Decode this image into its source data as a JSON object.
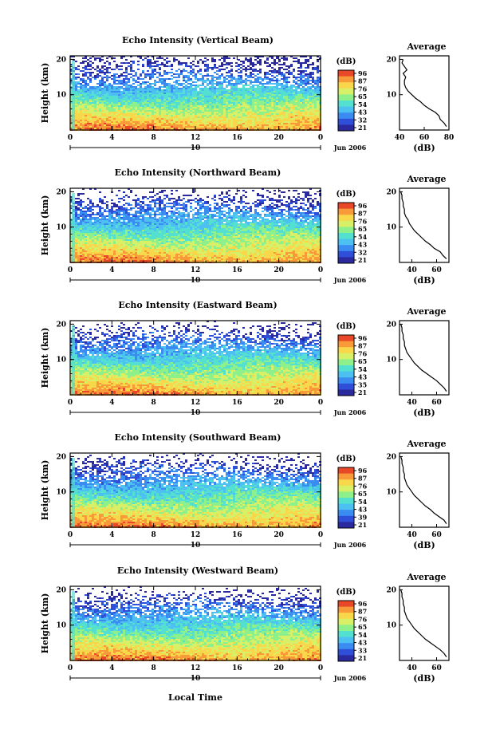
{
  "x_label": "Local Time",
  "colorbar": {
    "unit": "(dB)",
    "colors": [
      "#2a2a9e",
      "#2f4fd8",
      "#3b8cf0",
      "#4cc0f0",
      "#54e0d0",
      "#8ef08a",
      "#d8f068",
      "#f8d84a",
      "#f89a3a",
      "#e84828"
    ]
  },
  "avg_label": "(dB)",
  "avg_title": "Average",
  "date_label": "Jun 2006",
  "day_label": "10",
  "chart_data": [
    {
      "type": "heatmap",
      "title": "Echo Intensity (Vertical Beam)",
      "ylabel": "Height (km)",
      "x_ticks": [
        "0",
        "4",
        "8",
        "12",
        "16",
        "20",
        "0"
      ],
      "y_ticks": [
        "20",
        "10"
      ],
      "ylim": [
        0,
        21
      ],
      "colorbar_ticks": [
        "96",
        "87",
        "76",
        "65",
        "54",
        "43",
        "32",
        "21"
      ],
      "avg": {
        "xlim": [
          40,
          80
        ],
        "x_ticks": [
          "40",
          "60",
          "80"
        ],
        "y_ticks": [
          "20",
          "10"
        ],
        "profile": [
          [
            78,
            1
          ],
          [
            76,
            2
          ],
          [
            73,
            3
          ],
          [
            72,
            4
          ],
          [
            69,
            5
          ],
          [
            64,
            6
          ],
          [
            60,
            7
          ],
          [
            57,
            8
          ],
          [
            53,
            9
          ],
          [
            50,
            10
          ],
          [
            47,
            11
          ],
          [
            45,
            12
          ],
          [
            44,
            13
          ],
          [
            44,
            14
          ],
          [
            45,
            15
          ],
          [
            43,
            16
          ],
          [
            46,
            17
          ],
          [
            44,
            18
          ],
          [
            42,
            19
          ],
          [
            43,
            20
          ]
        ]
      }
    },
    {
      "type": "heatmap",
      "title": "Echo Intensity (Northward Beam)",
      "ylabel": "Height (km)",
      "x_ticks": [
        "0",
        "4",
        "8",
        "12",
        "16",
        "20",
        "0"
      ],
      "y_ticks": [
        "20",
        "10"
      ],
      "ylim": [
        0,
        21
      ],
      "colorbar_ticks": [
        "96",
        "87",
        "76",
        "65",
        "54",
        "43",
        "32",
        "21"
      ],
      "avg": {
        "xlim": [
          30,
          70
        ],
        "x_ticks": [
          "40",
          "60"
        ],
        "y_ticks": [
          "20",
          "10"
        ],
        "profile": [
          [
            68,
            1
          ],
          [
            65,
            2
          ],
          [
            63,
            3
          ],
          [
            58,
            4
          ],
          [
            55,
            5
          ],
          [
            51,
            6
          ],
          [
            48,
            7
          ],
          [
            45,
            8
          ],
          [
            42,
            9
          ],
          [
            40,
            10
          ],
          [
            38,
            11
          ],
          [
            37,
            12
          ],
          [
            35,
            13
          ],
          [
            34,
            14
          ],
          [
            34,
            15
          ],
          [
            33,
            16
          ],
          [
            33,
            17
          ],
          [
            32,
            18
          ],
          [
            32,
            19
          ],
          [
            31,
            20
          ]
        ]
      }
    },
    {
      "type": "heatmap",
      "title": "Echo Intensity (Eastward Beam)",
      "ylabel": "Height (km)",
      "x_ticks": [
        "0",
        "4",
        "8",
        "12",
        "16",
        "20",
        "0"
      ],
      "y_ticks": [
        "20",
        "10"
      ],
      "ylim": [
        0,
        21
      ],
      "colorbar_ticks": [
        "96",
        "87",
        "76",
        "65",
        "54",
        "43",
        "35",
        "21"
      ],
      "avg": {
        "xlim": [
          30,
          70
        ],
        "x_ticks": [
          "40",
          "60"
        ],
        "y_ticks": [
          "20",
          "10"
        ],
        "profile": [
          [
            68,
            1
          ],
          [
            66,
            2
          ],
          [
            63,
            3
          ],
          [
            60,
            4
          ],
          [
            56,
            5
          ],
          [
            52,
            6
          ],
          [
            48,
            7
          ],
          [
            45,
            8
          ],
          [
            42,
            9
          ],
          [
            40,
            10
          ],
          [
            38,
            11
          ],
          [
            36,
            12
          ],
          [
            35,
            13
          ],
          [
            34,
            14
          ],
          [
            34,
            15
          ],
          [
            33,
            16
          ],
          [
            33,
            17
          ],
          [
            32,
            18
          ],
          [
            32,
            19
          ],
          [
            31,
            20
          ]
        ]
      }
    },
    {
      "type": "heatmap",
      "title": "Echo Intensity (Southward Beam)",
      "ylabel": "Height (km)",
      "x_ticks": [
        "0",
        "4",
        "8",
        "12",
        "16",
        "20",
        "0"
      ],
      "y_ticks": [
        "20",
        "10"
      ],
      "ylim": [
        0,
        21
      ],
      "colorbar_ticks": [
        "96",
        "87",
        "76",
        "65",
        "54",
        "43",
        "39",
        "21"
      ],
      "avg": {
        "xlim": [
          30,
          70
        ],
        "x_ticks": [
          "40",
          "60"
        ],
        "y_ticks": [
          "20",
          "10"
        ],
        "profile": [
          [
            68,
            1
          ],
          [
            66,
            2
          ],
          [
            62,
            3
          ],
          [
            58,
            4
          ],
          [
            55,
            5
          ],
          [
            51,
            6
          ],
          [
            48,
            7
          ],
          [
            45,
            8
          ],
          [
            42,
            9
          ],
          [
            40,
            10
          ],
          [
            38,
            11
          ],
          [
            36,
            12
          ],
          [
            35,
            13
          ],
          [
            34,
            14
          ],
          [
            34,
            15
          ],
          [
            33,
            16
          ],
          [
            33,
            17
          ],
          [
            32,
            18
          ],
          [
            32,
            19
          ],
          [
            31,
            20
          ]
        ]
      }
    },
    {
      "type": "heatmap",
      "title": "Echo Intensity (Westward Beam)",
      "ylabel": "Height (km)",
      "x_ticks": [
        "0",
        "4",
        "8",
        "12",
        "16",
        "20",
        "0"
      ],
      "y_ticks": [
        "20",
        "10"
      ],
      "ylim": [
        0,
        21
      ],
      "colorbar_ticks": [
        "96",
        "87",
        "76",
        "65",
        "54",
        "43",
        "33",
        "21"
      ],
      "avg": {
        "xlim": [
          30,
          70
        ],
        "x_ticks": [
          "40",
          "60"
        ],
        "y_ticks": [
          "20",
          "10"
        ],
        "profile": [
          [
            68,
            1
          ],
          [
            66,
            2
          ],
          [
            63,
            3
          ],
          [
            59,
            4
          ],
          [
            55,
            5
          ],
          [
            51,
            6
          ],
          [
            48,
            7
          ],
          [
            45,
            8
          ],
          [
            42,
            9
          ],
          [
            40,
            10
          ],
          [
            38,
            11
          ],
          [
            36,
            12
          ],
          [
            35,
            13
          ],
          [
            34,
            14
          ],
          [
            34,
            15
          ],
          [
            33,
            16
          ],
          [
            33,
            17
          ],
          [
            32,
            18
          ],
          [
            32,
            19
          ],
          [
            31,
            20
          ]
        ]
      }
    }
  ]
}
